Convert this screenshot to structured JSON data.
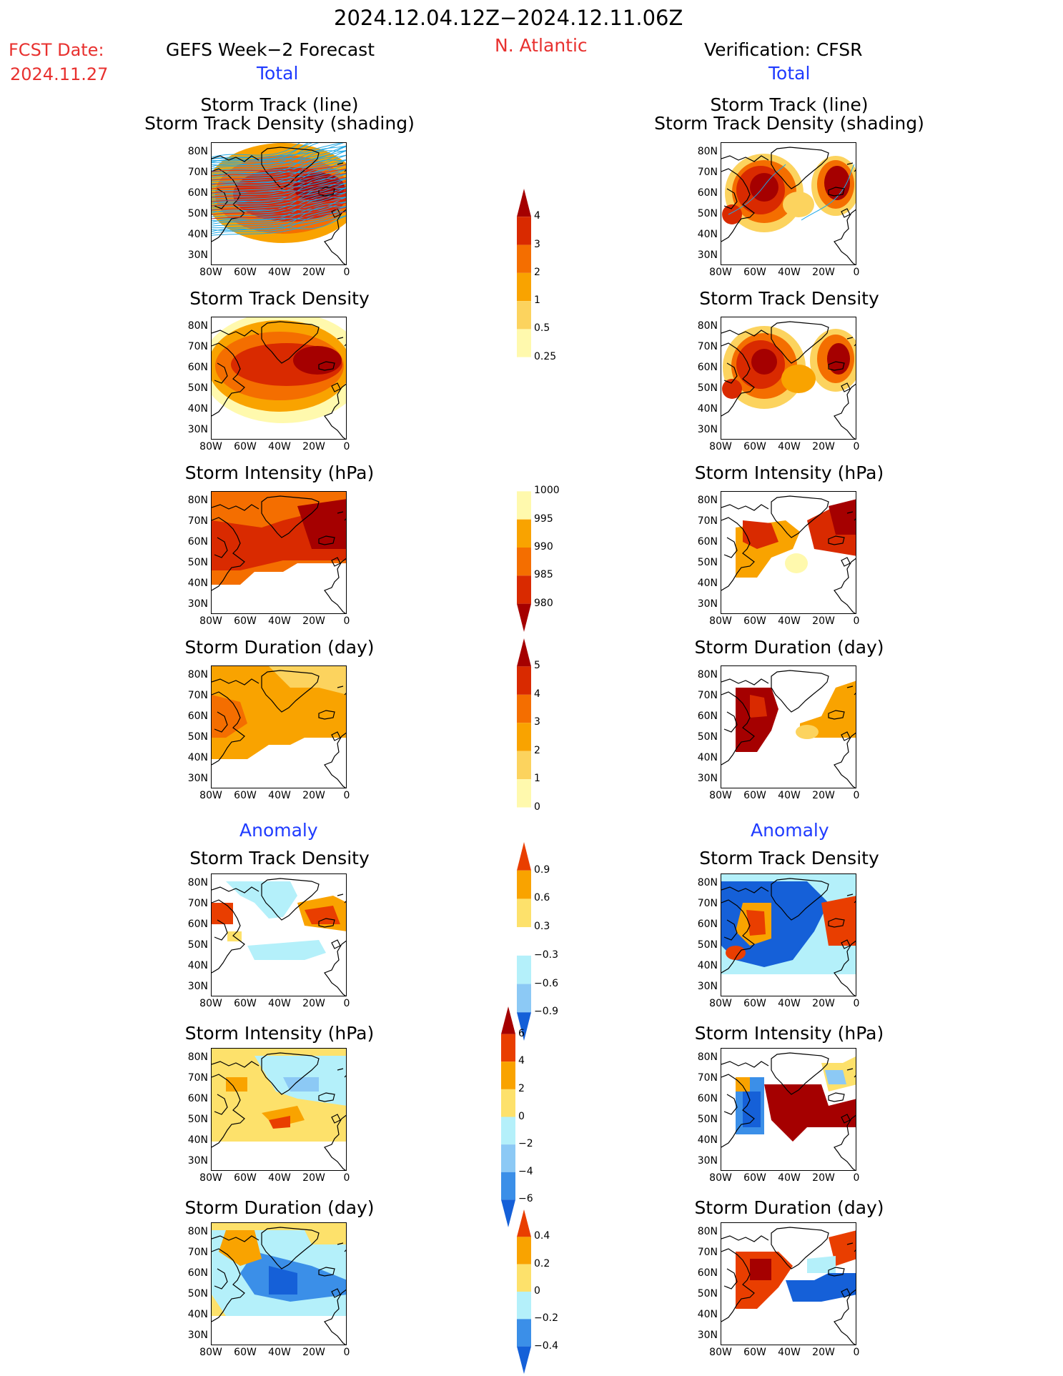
{
  "header": {
    "period": "2024.12.04.12Z−2024.12.11.06Z",
    "fcst_label": "FCST Date:",
    "fcst_date": "2024.11.27",
    "left_title": "GEFS Week−2 Forecast",
    "region": "N. Atlantic",
    "right_title": "Verification: CFSR",
    "total_left": "Total",
    "total_right": "Total",
    "anomaly_left": "Anomaly",
    "anomaly_right": "Anomaly"
  },
  "axes": {
    "lat_labels": [
      "80N",
      "70N",
      "60N",
      "50N",
      "40N",
      "30N"
    ],
    "lon_labels": [
      "80W",
      "60W",
      "40W",
      "20W",
      "0"
    ]
  },
  "panels": {
    "p1_title_a": "Storm Track (line)",
    "p1_title_b": "Storm Track Density (shading)",
    "p2_title": "Storm Track Density",
    "p3_title": "Storm Intensity (hPa)",
    "p4_title": "Storm Duration (day)",
    "p5_title": "Storm Track Density",
    "p6_title": "Storm Intensity (hPa)",
    "p7_title": "Storm Duration (day)"
  },
  "colorbars": {
    "density": [
      "4",
      "3",
      "2",
      "1",
      "0.5",
      "0.25"
    ],
    "intensity": [
      "1000",
      "995",
      "990",
      "985",
      "980"
    ],
    "duration": [
      "5",
      "4",
      "3",
      "2",
      "1",
      "0"
    ],
    "density_anom": [
      "0.9",
      "0.6",
      "0.3",
      "−0.3",
      "−0.6",
      "−0.9"
    ],
    "intensity_anom": [
      "6",
      "4",
      "2",
      "0",
      "−2",
      "−4",
      "−6"
    ],
    "duration_anom": [
      "0.4",
      "0.2",
      "0",
      "−0.2",
      "−0.4"
    ]
  },
  "colors": {
    "seq": [
      "#fff9ad",
      "#fcd35e",
      "#f9a300",
      "#f46e00",
      "#d92a00",
      "#a50000"
    ],
    "div_warm": [
      "#fde16b",
      "#f9a300",
      "#e93e00",
      "#a50000"
    ],
    "div_cool": [
      "#b4f0fa",
      "#8cc9f5",
      "#3b8fe8",
      "#1560d8"
    ],
    "track": "#1ea8e6"
  }
}
